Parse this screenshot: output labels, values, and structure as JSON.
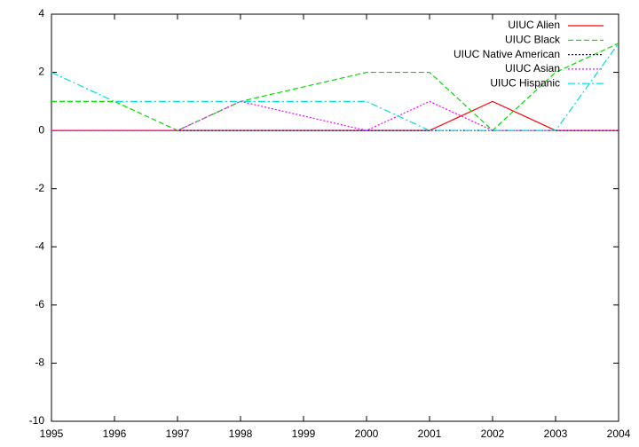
{
  "chart_data": {
    "type": "line",
    "x": [
      1995,
      1996,
      1997,
      1998,
      1999,
      2000,
      2001,
      2002,
      2003,
      2004
    ],
    "series": [
      {
        "name": "UIUC Alien",
        "color": "#ff0000",
        "dash": "solid",
        "values": [
          0,
          0,
          0,
          0,
          0,
          0,
          0,
          1,
          0,
          0
        ]
      },
      {
        "name": "UIUC Black",
        "color": "#00dd00",
        "dash": "dashed",
        "values": [
          1,
          1,
          0,
          1,
          1.5,
          2,
          2,
          0,
          2,
          3
        ]
      },
      {
        "name": "UIUC Native American",
        "color": "#0000cc",
        "dash": "dotted",
        "values": [
          0,
          0,
          0,
          0,
          0,
          0,
          0,
          0,
          0,
          0
        ]
      },
      {
        "name": "UIUC Asian",
        "color": "#ff00ff",
        "dash": "dotted",
        "values": [
          0,
          0,
          0,
          1,
          0.5,
          0,
          1,
          0,
          0,
          0
        ]
      },
      {
        "name": "UIUC Hispanic",
        "color": "#00dddd",
        "dash": "dashdot",
        "values": [
          2,
          1,
          1,
          1,
          1,
          1,
          0,
          0,
          0,
          3
        ]
      }
    ],
    "xlim": [
      1995,
      2004
    ],
    "xticks": [
      1995,
      1996,
      1997,
      1998,
      1999,
      2000,
      2001,
      2002,
      2003,
      2004
    ],
    "ylim": [
      -10,
      4
    ],
    "yticks": [
      -10,
      -8,
      -6,
      -4,
      -2,
      0,
      2,
      4
    ],
    "grid": false,
    "legend": "top-right"
  }
}
